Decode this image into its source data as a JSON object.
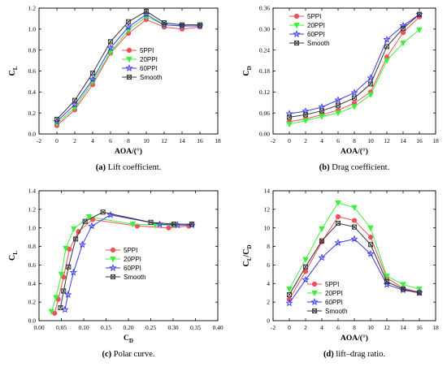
{
  "colors": {
    "5PPI": "#f0505a",
    "20PPI": "#3ef03e",
    "60PPI": "#3a3ae8",
    "Smooth": "#333333"
  },
  "chart_data": [
    {
      "type": "line",
      "caption_label": "(a)",
      "caption_text": "Lift coefficient.",
      "xlabel": "AOA/(°)",
      "ylabel": "C",
      "ylabel_sub": "L",
      "xlim": [
        -2,
        18
      ],
      "ylim": [
        0.0,
        1.2
      ],
      "xticks": [
        -2,
        0,
        2,
        4,
        6,
        8,
        10,
        12,
        14,
        16,
        18
      ],
      "yticks": [
        0.0,
        0.2,
        0.4,
        0.6,
        0.8,
        1.0,
        1.2
      ],
      "ytick_labels": [
        "0.0",
        "0.2",
        "0.4",
        "0.6",
        "0.8",
        "1.0",
        "1.2"
      ],
      "legend_position": "center-right",
      "series": [
        {
          "name": "5PPI",
          "marker": "circle",
          "x": [
            0,
            2,
            4,
            6,
            8,
            10,
            12,
            14,
            16
          ],
          "y": [
            0.08,
            0.23,
            0.47,
            0.77,
            0.96,
            1.09,
            1.02,
            1.0,
            1.02
          ]
        },
        {
          "name": "20PPI",
          "marker": "triangle-down",
          "x": [
            0,
            2,
            4,
            6,
            8,
            10,
            12,
            14,
            16
          ],
          "y": [
            0.1,
            0.25,
            0.5,
            0.78,
            0.99,
            1.12,
            1.04,
            1.03,
            1.03
          ]
        },
        {
          "name": "60PPI",
          "marker": "star",
          "x": [
            0,
            2,
            4,
            6,
            8,
            10,
            12,
            14,
            16
          ],
          "y": [
            0.12,
            0.28,
            0.52,
            0.82,
            1.02,
            1.14,
            1.04,
            1.03,
            1.03
          ]
        },
        {
          "name": "Smooth",
          "marker": "square-x",
          "x": [
            0,
            2,
            4,
            6,
            8,
            10,
            12,
            14,
            16
          ],
          "y": [
            0.14,
            0.32,
            0.58,
            0.88,
            1.07,
            1.17,
            1.06,
            1.04,
            1.04
          ]
        }
      ]
    },
    {
      "type": "line",
      "caption_label": "(b)",
      "caption_text": "Drag coefficient.",
      "xlabel": "AOA/(°)",
      "ylabel": "C",
      "ylabel_sub": "D",
      "xlim": [
        -2,
        18
      ],
      "ylim": [
        0.0,
        0.36
      ],
      "xticks": [
        -2,
        0,
        2,
        4,
        6,
        8,
        10,
        12,
        14,
        16,
        18
      ],
      "yticks": [
        0.0,
        0.06,
        0.12,
        0.18,
        0.24,
        0.3,
        0.36
      ],
      "ytick_labels": [
        "0.00",
        "0.06",
        "0.12",
        "0.18",
        "0.24",
        "0.30",
        "0.36"
      ],
      "legend_position": "top-left",
      "series": [
        {
          "name": "5PPI",
          "marker": "circle",
          "x": [
            0,
            2,
            4,
            6,
            8,
            10,
            12,
            14,
            16
          ],
          "y": [
            0.035,
            0.043,
            0.055,
            0.068,
            0.088,
            0.12,
            0.22,
            0.29,
            0.335
          ]
        },
        {
          "name": "20PPI",
          "marker": "triangle-down",
          "x": [
            0,
            2,
            4,
            6,
            8,
            10,
            12,
            14,
            16
          ],
          "y": [
            0.028,
            0.038,
            0.05,
            0.06,
            0.078,
            0.112,
            0.21,
            0.26,
            0.298
          ]
        },
        {
          "name": "60PPI",
          "marker": "star",
          "x": [
            0,
            2,
            4,
            6,
            8,
            10,
            12,
            14,
            16
          ],
          "y": [
            0.058,
            0.065,
            0.077,
            0.097,
            0.118,
            0.16,
            0.27,
            0.31,
            0.342
          ]
        },
        {
          "name": "Smooth",
          "marker": "square-x",
          "x": [
            0,
            2,
            4,
            6,
            8,
            10,
            12,
            14,
            16
          ],
          "y": [
            0.048,
            0.055,
            0.066,
            0.082,
            0.103,
            0.143,
            0.25,
            0.302,
            0.342
          ]
        }
      ]
    },
    {
      "type": "line",
      "caption_label": "(c)",
      "caption_text": "Polar curve.",
      "xlabel": "C",
      "xlabel_sub": "D",
      "ylabel": "C",
      "ylabel_sub": "L",
      "xlim": [
        0.0,
        0.4
      ],
      "ylim": [
        0.0,
        1.4
      ],
      "xticks": [
        0.0,
        0.05,
        0.1,
        0.15,
        0.2,
        0.25,
        0.3,
        0.35,
        0.4
      ],
      "xtick_labels": [
        "0.00",
        "0.05",
        "0.10",
        "0.15",
        "0.20",
        "0.25",
        "0.30",
        "0.35",
        "0.40"
      ],
      "yticks": [
        0.0,
        0.2,
        0.4,
        0.6,
        0.8,
        1.0,
        1.2,
        1.4
      ],
      "ytick_labels": [
        "0.0",
        "0.2",
        "0.4",
        "0.6",
        "0.8",
        "1.0",
        "1.2",
        "1.4"
      ],
      "legend_position": "center-right",
      "series": [
        {
          "name": "5PPI",
          "marker": "circle",
          "x": [
            0.035,
            0.043,
            0.055,
            0.068,
            0.088,
            0.12,
            0.22,
            0.29,
            0.335
          ],
          "y": [
            0.08,
            0.23,
            0.47,
            0.77,
            0.96,
            1.09,
            1.02,
            1.0,
            1.02
          ]
        },
        {
          "name": "20PPI",
          "marker": "triangle-down",
          "x": [
            0.028,
            0.038,
            0.05,
            0.06,
            0.078,
            0.112,
            0.21,
            0.26,
            0.298
          ],
          "y": [
            0.1,
            0.25,
            0.5,
            0.78,
            0.99,
            1.12,
            1.04,
            1.03,
            1.03
          ]
        },
        {
          "name": "60PPI",
          "marker": "star",
          "x": [
            0.058,
            0.065,
            0.077,
            0.097,
            0.118,
            0.16,
            0.27,
            0.31,
            0.342
          ],
          "y": [
            0.12,
            0.28,
            0.52,
            0.82,
            1.02,
            1.14,
            1.04,
            1.03,
            1.03
          ]
        },
        {
          "name": "Smooth",
          "marker": "square-x",
          "x": [
            0.048,
            0.055,
            0.066,
            0.082,
            0.103,
            0.143,
            0.25,
            0.302,
            0.342
          ],
          "y": [
            0.14,
            0.32,
            0.58,
            0.88,
            1.07,
            1.17,
            1.06,
            1.04,
            1.04
          ]
        }
      ]
    },
    {
      "type": "line",
      "caption_label": "(d)",
      "caption_text": "lift–drag ratio.",
      "xlabel": "AOA/(°)",
      "ylabel": "C",
      "ylabel_sub": "L",
      "ylabel_mid": "/C",
      "ylabel_sub2": "D",
      "xlim": [
        -2,
        18
      ],
      "ylim": [
        0,
        14
      ],
      "xticks": [
        -2,
        0,
        2,
        4,
        6,
        8,
        10,
        12,
        14,
        16,
        18
      ],
      "yticks": [
        0,
        2,
        4,
        6,
        8,
        10,
        12,
        14
      ],
      "ytick_labels": [
        "0",
        "2",
        "4",
        "6",
        "8",
        "10",
        "12",
        "14"
      ],
      "legend_position": "bottom-center",
      "series": [
        {
          "name": "5PPI",
          "marker": "circle",
          "x": [
            0,
            2,
            4,
            6,
            8,
            10,
            12,
            14,
            16
          ],
          "y": [
            2.3,
            5.3,
            8.5,
            11.2,
            10.8,
            9.0,
            4.6,
            3.5,
            3.1
          ]
        },
        {
          "name": "20PPI",
          "marker": "triangle-down",
          "x": [
            0,
            2,
            4,
            6,
            8,
            10,
            12,
            14,
            16
          ],
          "y": [
            3.4,
            6.6,
            9.9,
            12.7,
            12.2,
            10.0,
            4.8,
            3.9,
            3.4
          ]
        },
        {
          "name": "60PPI",
          "marker": "star",
          "x": [
            0,
            2,
            4,
            6,
            8,
            10,
            12,
            14,
            16
          ],
          "y": [
            1.9,
            4.4,
            6.8,
            8.4,
            8.8,
            7.2,
            3.9,
            3.3,
            3.0
          ]
        },
        {
          "name": "Smooth",
          "marker": "square-x",
          "x": [
            0,
            2,
            4,
            6,
            8,
            10,
            12,
            14,
            16
          ],
          "y": [
            2.8,
            5.8,
            8.6,
            10.5,
            10.1,
            8.2,
            4.2,
            3.4,
            3.0
          ]
        }
      ]
    }
  ]
}
